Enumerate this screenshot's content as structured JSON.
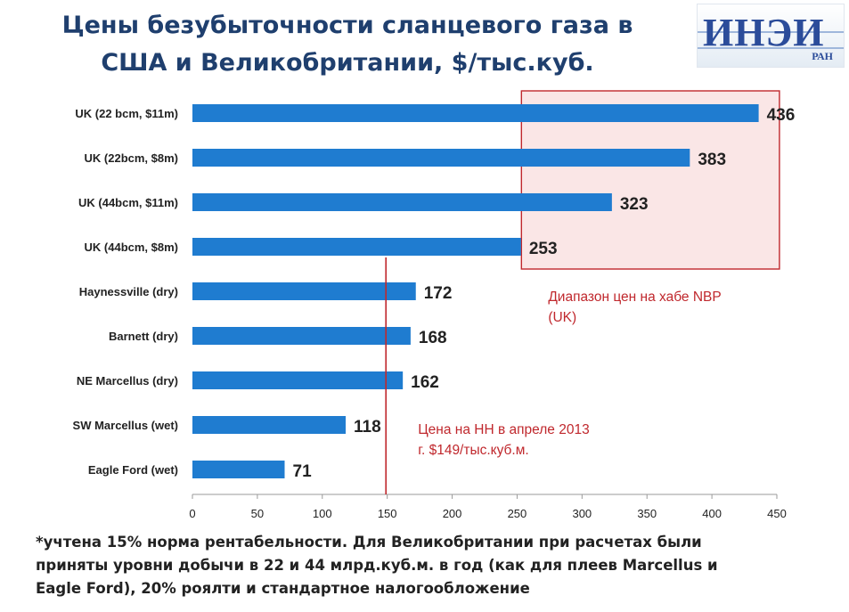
{
  "title_line1": "Цены безубыточности сланцевого газа в",
  "title_line2": "США и Великобритании, $/тыс.куб.",
  "logo": {
    "text": "ИНЭИ",
    "sub": "РАН"
  },
  "footnote": [
    "*учтена 15% норма рентабельности. Для Великобритании при расчетах были",
    "приняты уровни добычи в 22 и 44 млрд.куб.м. в год (как для плеев Marcellus и",
    "Eagle Ford), 20% роялти и стандартное налогообложение"
  ],
  "colors": {
    "bar": "#1f7cd0",
    "annotation": "#c0282d",
    "range_fill": "#f8dede",
    "title": "#1f3f6e"
  },
  "chart_data": {
    "type": "bar",
    "orientation": "horizontal",
    "categories": [
      "UK (22 bcm, $11m)",
      "UK (22bcm, $8m)",
      "UK (44bcm, $11m)",
      "UK (44bcm, $8m)",
      "Haynessville (dry)",
      "Barnett (dry)",
      "NE Marcellus (dry)",
      "SW Marcellus (wet)",
      "Eagle Ford (wet)"
    ],
    "values": [
      436,
      383,
      323,
      253,
      172,
      168,
      162,
      118,
      71
    ],
    "xlim": [
      0,
      450
    ],
    "xticks": [
      0,
      50,
      100,
      150,
      200,
      250,
      300,
      350,
      400,
      450
    ],
    "reference_line": {
      "value": 149,
      "label_lines": [
        "Цена на НН в апреле 2013",
        "г. $149/тыс.куб.м."
      ]
    },
    "range_box": {
      "x_from": 253,
      "x_to": 452,
      "categories_from": 0,
      "categories_to": 3,
      "label_lines": [
        "Диапазон цен на хабе NBP",
        "(UK)"
      ]
    }
  }
}
